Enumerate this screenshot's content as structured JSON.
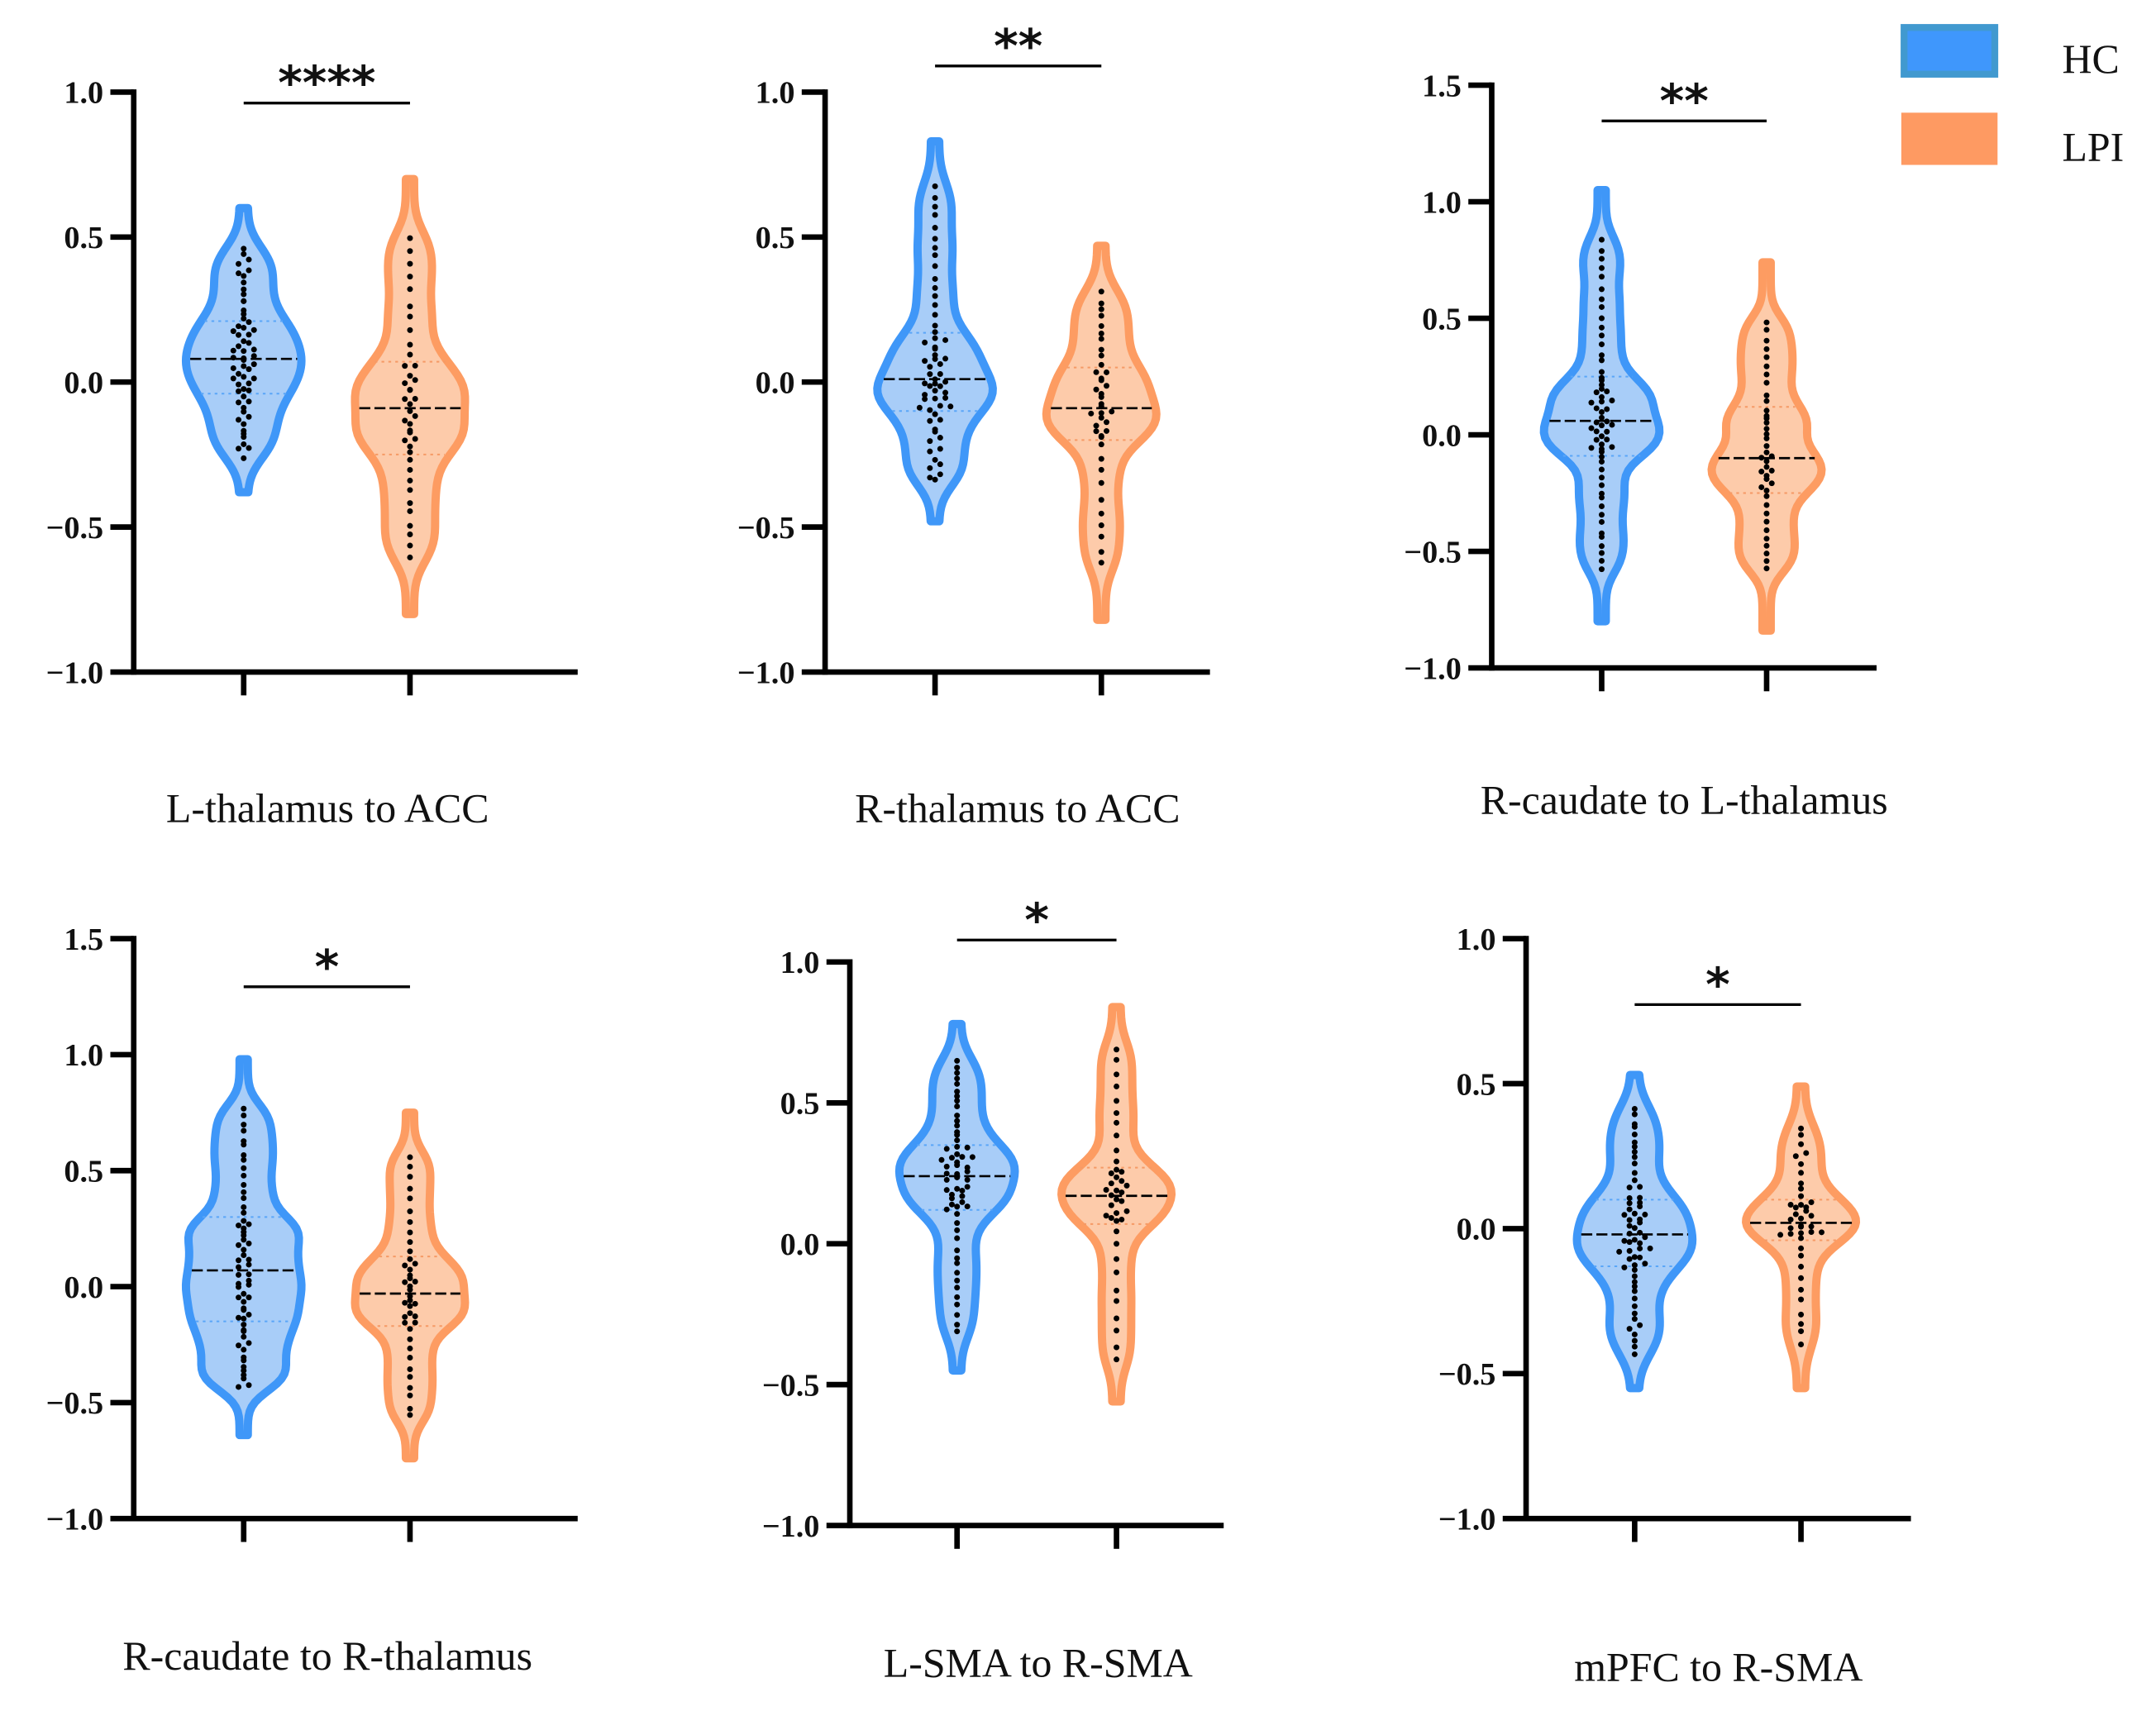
{
  "chart_data": {
    "type": "violin",
    "legend": {
      "placement": "top-right",
      "entries": [
        {
          "name": "HC",
          "fill": "#3d97fb",
          "stroke": "#4199cf"
        },
        {
          "name": "LPI",
          "fill": "#fe9a62",
          "stroke": "#fe9a62"
        }
      ]
    },
    "colors": {
      "HC": {
        "stroke": "#3f97f8",
        "fill": "#a8cdf8",
        "quartile": "#5aa6f8"
      },
      "LPI": {
        "stroke": "#fd9c62",
        "fill": "#fdcbaa",
        "quartile": "#f59a66"
      }
    },
    "panels": [
      {
        "title": "L-thalamus to ACC",
        "significance": "****",
        "ylim": [
          -1.0,
          1.0
        ],
        "y_ticks": [
          1.0,
          0.5,
          0.0,
          -0.5,
          -1.0
        ],
        "y_tick_labels": [
          "1.0",
          "0.5",
          "0.0",
          "−0.5",
          "−1.0"
        ],
        "groups": [
          {
            "name": "HC",
            "n": 60,
            "min": -0.26,
            "q1": -0.04,
            "median": 0.08,
            "q3": 0.21,
            "max": 0.47,
            "violin_min": -0.38,
            "violin_max": 0.6
          },
          {
            "name": "LPI",
            "n": 40,
            "min": -0.62,
            "q1": -0.25,
            "median": -0.09,
            "q3": 0.07,
            "max": 0.51,
            "violin_min": -0.8,
            "violin_max": 0.7
          }
        ]
      },
      {
        "title": "R-thalamus to ACC",
        "significance": "**",
        "ylim": [
          -1.0,
          1.0
        ],
        "y_ticks": [
          1.0,
          0.5,
          0.0,
          -0.5,
          -1.0
        ],
        "y_tick_labels": [
          "1.0",
          "0.5",
          "0.0",
          "−0.5",
          "−1.0"
        ],
        "groups": [
          {
            "name": "HC",
            "n": 60,
            "min": -0.35,
            "q1": -0.1,
            "median": 0.01,
            "q3": 0.17,
            "max": 0.69,
            "violin_min": -0.48,
            "violin_max": 0.83
          },
          {
            "name": "LPI",
            "n": 40,
            "min": -0.65,
            "q1": -0.2,
            "median": -0.09,
            "q3": 0.05,
            "max": 0.32,
            "violin_min": -0.82,
            "violin_max": 0.47
          }
        ]
      },
      {
        "title": "R-caudate to L-thalamus",
        "significance": "**",
        "ylim": [
          -1.0,
          1.5
        ],
        "y_ticks": [
          1.5,
          1.0,
          0.5,
          0.0,
          -0.5,
          -1.0
        ],
        "y_tick_labels": [
          "1.5",
          "1.0",
          "0.5",
          "0.0",
          "−0.5",
          "−1.0"
        ],
        "groups": [
          {
            "name": "HC",
            "n": 60,
            "min": -0.6,
            "q1": -0.09,
            "median": 0.06,
            "q3": 0.25,
            "max": 0.85,
            "violin_min": -0.8,
            "violin_max": 1.05
          },
          {
            "name": "LPI",
            "n": 40,
            "min": -0.6,
            "q1": -0.25,
            "median": -0.1,
            "q3": 0.12,
            "max": 0.5,
            "violin_min": -0.84,
            "violin_max": 0.74
          }
        ]
      },
      {
        "title": "R-caudate to R-thalamus",
        "significance": "*",
        "ylim": [
          -1.0,
          1.5
        ],
        "y_ticks": [
          1.5,
          1.0,
          0.5,
          0.0,
          -0.5,
          -1.0
        ],
        "y_tick_labels": [
          "1.5",
          "1.0",
          "0.5",
          "0.0",
          "−0.5",
          "−1.0"
        ],
        "groups": [
          {
            "name": "HC",
            "n": 60,
            "min": -0.45,
            "q1": -0.15,
            "median": 0.07,
            "q3": 0.3,
            "max": 0.78,
            "violin_min": -0.64,
            "violin_max": 0.98
          },
          {
            "name": "LPI",
            "n": 40,
            "min": -0.58,
            "q1": -0.17,
            "median": -0.03,
            "q3": 0.13,
            "max": 0.58,
            "violin_min": -0.74,
            "violin_max": 0.75
          }
        ]
      },
      {
        "title": "L-SMA to R-SMA",
        "significance": "*",
        "ylim": [
          -1.0,
          1.0
        ],
        "y_ticks": [
          1.0,
          0.5,
          0.0,
          -0.5,
          -1.0
        ],
        "y_tick_labels": [
          "1.0",
          "0.5",
          "0.0",
          "−0.5",
          "−1.0"
        ],
        "groups": [
          {
            "name": "HC",
            "n": 60,
            "min": -0.33,
            "q1": 0.12,
            "median": 0.24,
            "q3": 0.35,
            "max": 0.65,
            "violin_min": -0.45,
            "violin_max": 0.78
          },
          {
            "name": "LPI",
            "n": 40,
            "min": -0.44,
            "q1": 0.07,
            "median": 0.17,
            "q3": 0.27,
            "max": 0.71,
            "violin_min": -0.56,
            "violin_max": 0.84
          }
        ]
      },
      {
        "title": "mPFC to R-SMA",
        "significance": "*",
        "ylim": [
          -1.0,
          1.0
        ],
        "y_ticks": [
          1.0,
          0.5,
          0.0,
          -0.5,
          -1.0
        ],
        "y_tick_labels": [
          "1.0",
          "0.5",
          "0.0",
          "−0.5",
          "−1.0"
        ],
        "groups": [
          {
            "name": "HC",
            "n": 60,
            "min": -0.44,
            "q1": -0.13,
            "median": -0.02,
            "q3": 0.1,
            "max": 0.42,
            "violin_min": -0.55,
            "violin_max": 0.53
          },
          {
            "name": "LPI",
            "n": 40,
            "min": -0.42,
            "q1": -0.04,
            "median": 0.02,
            "q3": 0.1,
            "max": 0.36,
            "violin_min": -0.55,
            "violin_max": 0.49
          }
        ]
      }
    ]
  }
}
